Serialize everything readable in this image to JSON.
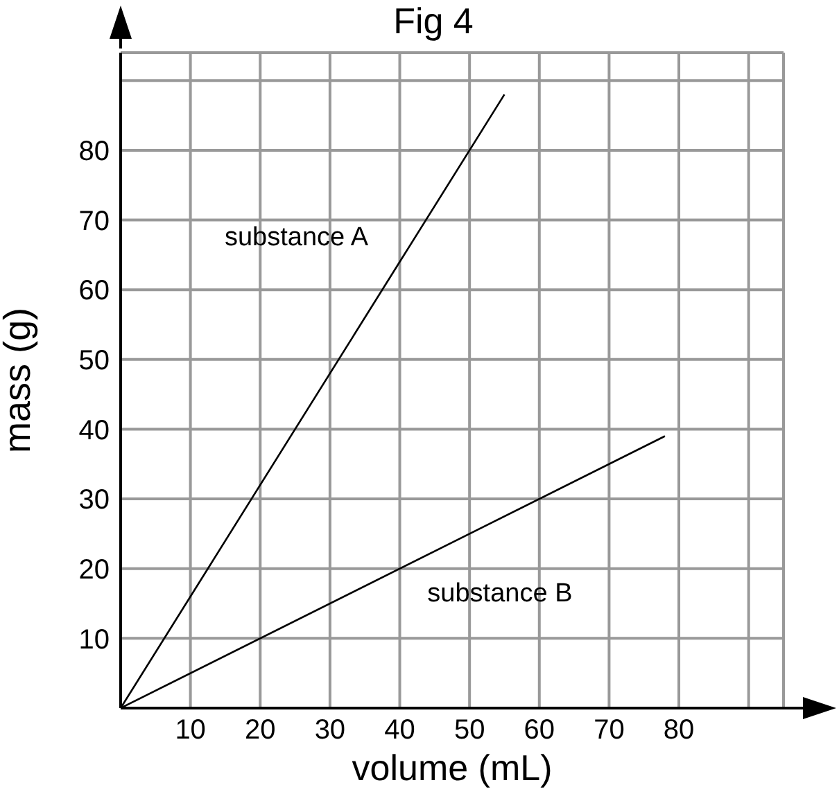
{
  "chart_data": {
    "type": "line",
    "title": "Fig 4",
    "xlabel": "volume (mL)",
    "ylabel": "mass (g)",
    "series": [
      {
        "name": "substance A",
        "color": "#000000",
        "x": [
          0,
          55
        ],
        "values": [
          0,
          88
        ]
      },
      {
        "name": "substance B",
        "color": "#000000",
        "x": [
          0,
          78
        ],
        "values": [
          0,
          39
        ]
      }
    ],
    "xlim": [
      0,
      95
    ],
    "xticks": [
      10,
      20,
      30,
      40,
      50,
      60,
      70,
      80,
      {
        "value": 90,
        "label": null
      }
    ],
    "ylim": [
      0,
      94
    ],
    "yticks": [
      10,
      20,
      30,
      40,
      50,
      60,
      70,
      80,
      {
        "value": 90,
        "label": null
      }
    ],
    "grid": true,
    "legend": false,
    "marker": "none",
    "line_style": "solid"
  }
}
